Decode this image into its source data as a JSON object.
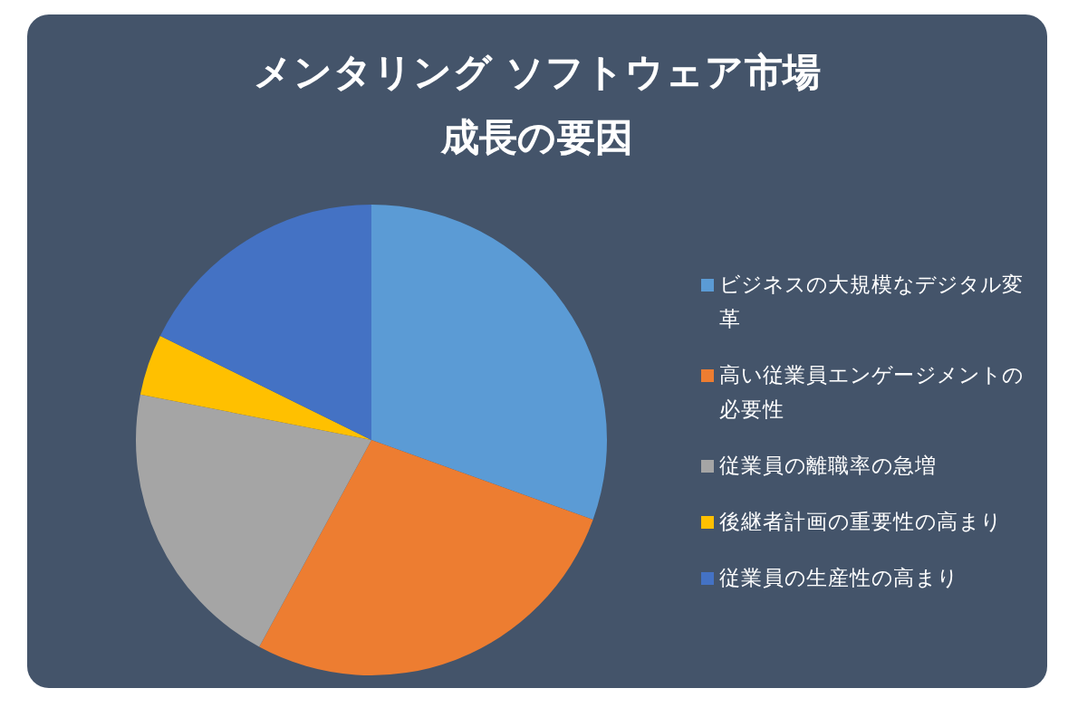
{
  "chart_data": {
    "type": "pie",
    "title": "メンタリング ソフトウェア市場",
    "subtitle": "成長の要因",
    "categories": [
      "ビジネスの大規模なデジタル変革",
      "高い従業員エンゲージメントの必要性",
      "従業員の離職率の急増",
      "後継者計画の重要性の高まり",
      "従業員の生産性の高まり"
    ],
    "values": [
      30.5,
      27.4,
      20.2,
      4.2,
      17.7
    ],
    "colors": [
      "#5b9bd5",
      "#ed7d31",
      "#a5a5a5",
      "#ffc000",
      "#4472c4"
    ],
    "legend": "right"
  }
}
